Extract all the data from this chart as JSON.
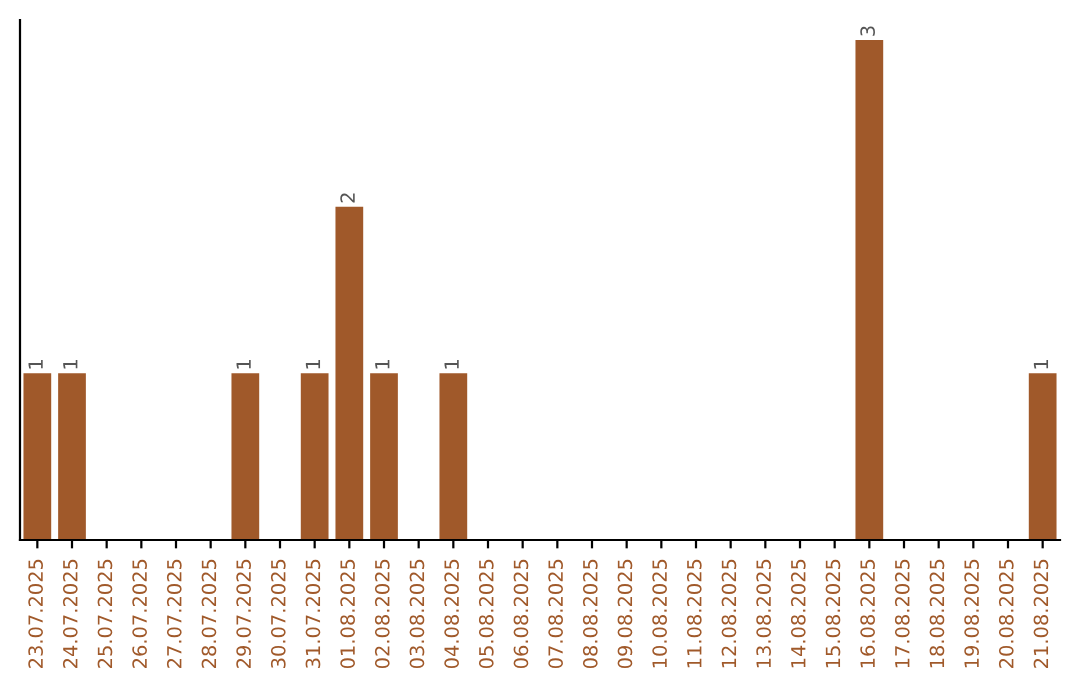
{
  "chart_data": {
    "type": "bar",
    "categories": [
      "23.07.2025",
      "24.07.2025",
      "25.07.2025",
      "26.07.2025",
      "27.07.2025",
      "28.07.2025",
      "29.07.2025",
      "30.07.2025",
      "31.07.2025",
      "01.08.2025",
      "02.08.2025",
      "03.08.2025",
      "04.08.2025",
      "05.08.2025",
      "06.08.2025",
      "07.08.2025",
      "08.08.2025",
      "09.08.2025",
      "10.08.2025",
      "11.08.2025",
      "12.08.2025",
      "13.08.2025",
      "14.08.2025",
      "15.08.2025",
      "16.08.2025",
      "17.08.2025",
      "18.08.2025",
      "19.08.2025",
      "20.08.2025",
      "21.08.2025"
    ],
    "values": [
      1,
      1,
      0,
      0,
      0,
      0,
      1,
      0,
      1,
      2,
      1,
      0,
      1,
      0,
      0,
      0,
      0,
      0,
      0,
      0,
      0,
      0,
      0,
      0,
      3,
      0,
      0,
      0,
      0,
      1
    ],
    "value_labels": [
      "1",
      "1",
      null,
      null,
      null,
      null,
      "1",
      null,
      "1",
      "2",
      "1",
      null,
      "1",
      null,
      null,
      null,
      null,
      null,
      null,
      null,
      null,
      null,
      null,
      null,
      "3",
      null,
      null,
      null,
      null,
      "1"
    ],
    "color": "#a0592a",
    "tick_labels": "x"
  }
}
